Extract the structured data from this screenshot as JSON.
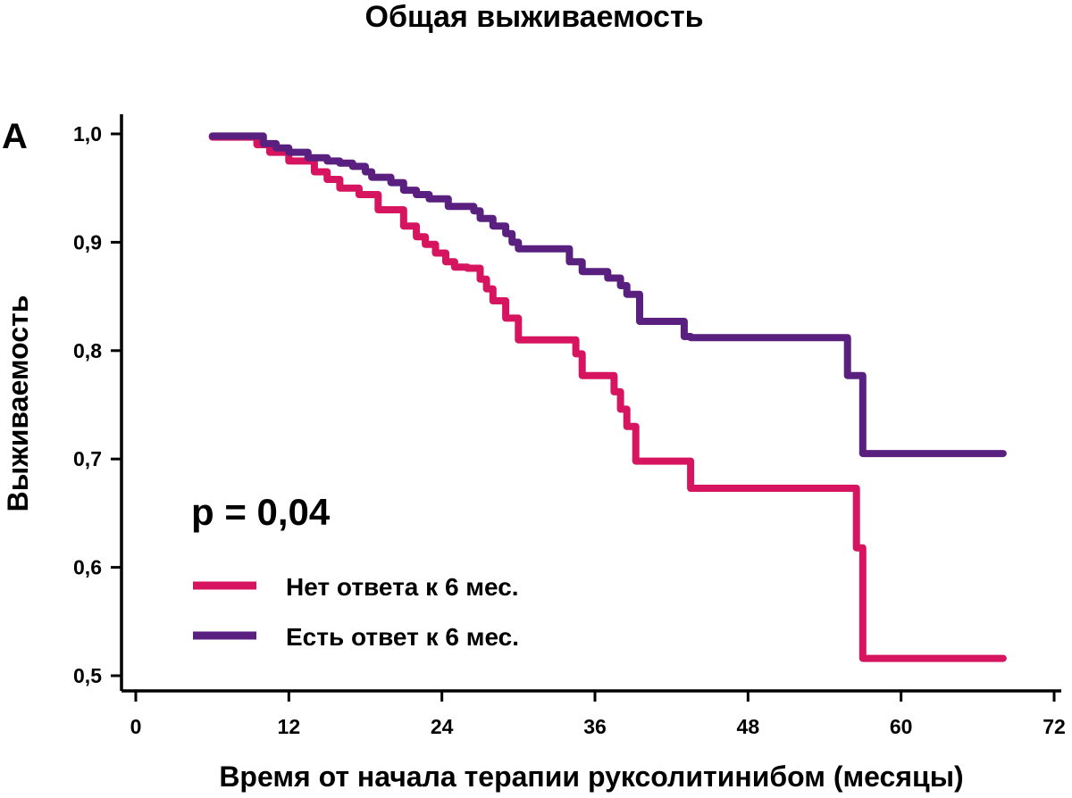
{
  "chart_data": {
    "type": "line",
    "title": "Общая выживаемость",
    "panel_label": "А",
    "xlabel": "Время от начала терапии руксолитинибом (месяцы)",
    "ylabel": "Выживаемость",
    "xlim": [
      0,
      72
    ],
    "ylim": [
      0.5,
      1.0
    ],
    "x_ticks": [
      0,
      12,
      24,
      36,
      48,
      60,
      72
    ],
    "x_tick_labels": [
      "0",
      "12",
      "24",
      "36",
      "48",
      "60",
      "72"
    ],
    "y_ticks": [
      1.0,
      0.9,
      0.8,
      0.7,
      0.6,
      0.5
    ],
    "y_tick_labels": [
      "1,0",
      "0,9",
      "0,8",
      "0,7",
      "0,6",
      "0,5"
    ],
    "annotation": "p = 0,04",
    "grid": false,
    "legend_position": "bottom-left",
    "step": true,
    "series": [
      {
        "name": "Нет ответа к 6 мес.",
        "color": "#d6145f",
        "x": [
          6,
          9.5,
          10.5,
          12,
          14,
          15,
          16,
          17.5,
          19,
          21,
          22,
          22.7,
          23.5,
          24.3,
          25,
          26,
          27,
          27.5,
          28,
          29,
          30,
          34.5,
          35,
          37.5,
          38,
          38.5,
          39.2,
          42.5,
          43.5,
          55.5,
          56.5,
          57,
          68
        ],
        "y": [
          0.997,
          0.99,
          0.983,
          0.975,
          0.965,
          0.958,
          0.95,
          0.944,
          0.93,
          0.915,
          0.905,
          0.898,
          0.89,
          0.882,
          0.877,
          0.876,
          0.866,
          0.857,
          0.846,
          0.83,
          0.81,
          0.797,
          0.777,
          0.762,
          0.746,
          0.73,
          0.698,
          0.698,
          0.673,
          0.673,
          0.618,
          0.516,
          0.516
        ]
      },
      {
        "name": "Есть ответ к 6 мес.",
        "color": "#5a2080",
        "x": [
          6,
          10,
          11,
          12,
          13.5,
          15,
          16,
          17,
          18,
          18.5,
          20,
          21,
          22,
          23,
          24.5,
          26.5,
          27,
          28,
          29,
          29.5,
          30,
          34,
          35,
          37,
          38,
          38.5,
          39.5,
          43,
          43.5,
          55.8,
          56.5,
          57,
          68
        ],
        "y": [
          0.998,
          0.991,
          0.987,
          0.983,
          0.978,
          0.975,
          0.973,
          0.97,
          0.965,
          0.96,
          0.955,
          0.948,
          0.944,
          0.94,
          0.933,
          0.929,
          0.922,
          0.915,
          0.908,
          0.9,
          0.894,
          0.882,
          0.873,
          0.867,
          0.86,
          0.852,
          0.827,
          0.813,
          0.812,
          0.777,
          0.777,
          0.705,
          0.705
        ]
      }
    ]
  }
}
